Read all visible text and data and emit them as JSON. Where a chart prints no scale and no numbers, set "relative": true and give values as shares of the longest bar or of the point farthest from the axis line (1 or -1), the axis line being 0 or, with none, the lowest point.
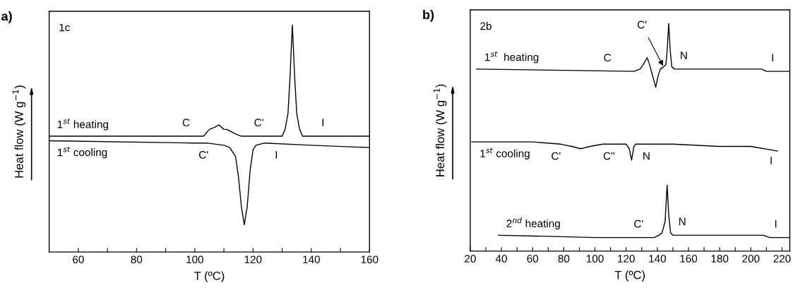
{
  "chart_data": [
    {
      "type": "line",
      "title": "a)",
      "relative": true,
      "xlabel": "T (ºC)",
      "ylabel": "Heat flow (W g$^{−1}$)",
      "xlim": [
        50,
        160
      ],
      "xticks": [
        60,
        {
          "value": 70,
          "label": null
        },
        80,
        {
          "value": 90,
          "label": null
        },
        100,
        {
          "value": 110,
          "label": null
        },
        120,
        {
          "value": 130,
          "label": null
        },
        140,
        {
          "value": 150,
          "label": null
        },
        160
      ],
      "legend": false,
      "grid": false,
      "line_style": "solid",
      "series": [
        {
          "name": "1$^{st}$ heating",
          "color": "#000000",
          "x": [
            50,
            100,
            103,
            105,
            107,
            108.3,
            110,
            111,
            114,
            116,
            120,
            128,
            130,
            131,
            132,
            132.7,
            133.5,
            134.3,
            135,
            136,
            137,
            140,
            160
          ],
          "values": [
            0.51,
            0.51,
            0.51,
            0.54,
            0.55,
            0.56,
            0.54,
            0.54,
            0.52,
            0.51,
            0.51,
            0.51,
            0.51,
            0.54,
            0.61,
            0.77,
            1,
            0.77,
            0.61,
            0.54,
            0.51,
            0.51,
            0.51
          ]
        },
        {
          "name": "1$^{st}$ cooling",
          "color": "#000000",
          "x": [
            50,
            100,
            104,
            110,
            112,
            114,
            115,
            116,
            117,
            118,
            119,
            120,
            121,
            124,
            140,
            160
          ],
          "values": [
            0.49,
            0.48,
            0.48,
            0.47,
            0.46,
            0.42,
            0.33,
            0.2,
            0.12,
            0.2,
            0.36,
            0.45,
            0.47,
            0.48,
            0.47,
            0.46
          ]
        }
      ],
      "annotations": [
        "1c",
        {
          "text": "C",
          "x": 97,
          "y": 0.51
        },
        {
          "text": "C'",
          "x": 122,
          "y": 0.51
        },
        {
          "text": "I",
          "x": 144,
          "y": 0.51
        },
        {
          "text": "C'",
          "x": 103,
          "y": 0.48
        },
        {
          "text": "I",
          "x": 128,
          "y": 0.48
        }
      ]
    },
    {
      "type": "line",
      "title": "b)",
      "relative": true,
      "xlabel": "T (ºC)",
      "ylabel": "Heat flow (W g$^{−1}$)",
      "xlim": [
        20,
        225
      ],
      "xticks": [
        20,
        {
          "value": 30,
          "label": null
        },
        40,
        {
          "value": 50,
          "label": null
        },
        60,
        {
          "value": 70,
          "label": null
        },
        80,
        {
          "value": 90,
          "label": null
        },
        100,
        {
          "value": 110,
          "label": null
        },
        120,
        {
          "value": 130,
          "label": null
        },
        140,
        {
          "value": 150,
          "label": null
        },
        160,
        {
          "value": 170,
          "label": null
        },
        180,
        {
          "value": 190,
          "label": null
        },
        200,
        {
          "value": 210,
          "label": null
        },
        220
      ],
      "legend": false,
      "grid": false,
      "line_style": "solid",
      "series": [
        {
          "name": "1$^{st}$  heating",
          "color": "#000000",
          "x": [
            24,
            125,
            129,
            131,
            133.5,
            135,
            137,
            139,
            140.5,
            142,
            144,
            145.5,
            146.3,
            147.3,
            148.3,
            149.3,
            151,
            207,
            210,
            225
          ],
          "values": [
            0.8,
            0.79,
            0.8,
            0.82,
            0.85,
            0.82,
            0.77,
            0.72,
            0.77,
            0.8,
            0.81,
            0.82,
            0.88,
            1,
            0.88,
            0.81,
            0.8,
            0.8,
            0.79,
            0.79
          ]
        },
        {
          "name": "1$^{st}$ cooling",
          "color": "#000000",
          "x": [
            21,
            60,
            78,
            85,
            91,
            97,
            105,
            115,
            120,
            122,
            123.5,
            125,
            126,
            150,
            180,
            200,
            217
          ],
          "values": [
            0.48,
            0.48,
            0.47,
            0.46,
            0.45,
            0.46,
            0.47,
            0.47,
            0.47,
            0.45,
            0.4,
            0.46,
            0.47,
            0.47,
            0.46,
            0.46,
            0.44
          ]
        },
        {
          "name": "2$^{nd}$ heating",
          "color": "#000000",
          "x": [
            38,
            100,
            120,
            138,
            141,
            143,
            145,
            146.3,
            147.3,
            148.5,
            150,
            180,
            208,
            212,
            225
          ],
          "values": [
            0.07,
            0.06,
            0.06,
            0.06,
            0.07,
            0.08,
            0.13,
            0.29,
            0.16,
            0.08,
            0.07,
            0.07,
            0.07,
            0.06,
            0.06
          ]
        }
      ],
      "annotations": [
        "2b",
        {
          "text": "C",
          "x": 108,
          "y": 0.79
        },
        {
          "text": "C'",
          "x": 144,
          "y": 0.81
        },
        {
          "text": "N",
          "x": 157,
          "y": 0.8
        },
        {
          "text": "I",
          "x": 214,
          "y": 0.79
        },
        {
          "text": "C'",
          "x": 75,
          "y": 0.47
        },
        {
          "text": "C''",
          "x": 109,
          "y": 0.47
        },
        {
          "text": "N",
          "x": 133,
          "y": 0.47
        },
        {
          "text": "I",
          "x": 213,
          "y": 0.45
        },
        {
          "text": "C'",
          "x": 128,
          "y": 0.06
        },
        {
          "text": "N",
          "x": 156,
          "y": 0.07
        },
        {
          "text": "I",
          "x": 216,
          "y": 0.06
        }
      ]
    }
  ]
}
